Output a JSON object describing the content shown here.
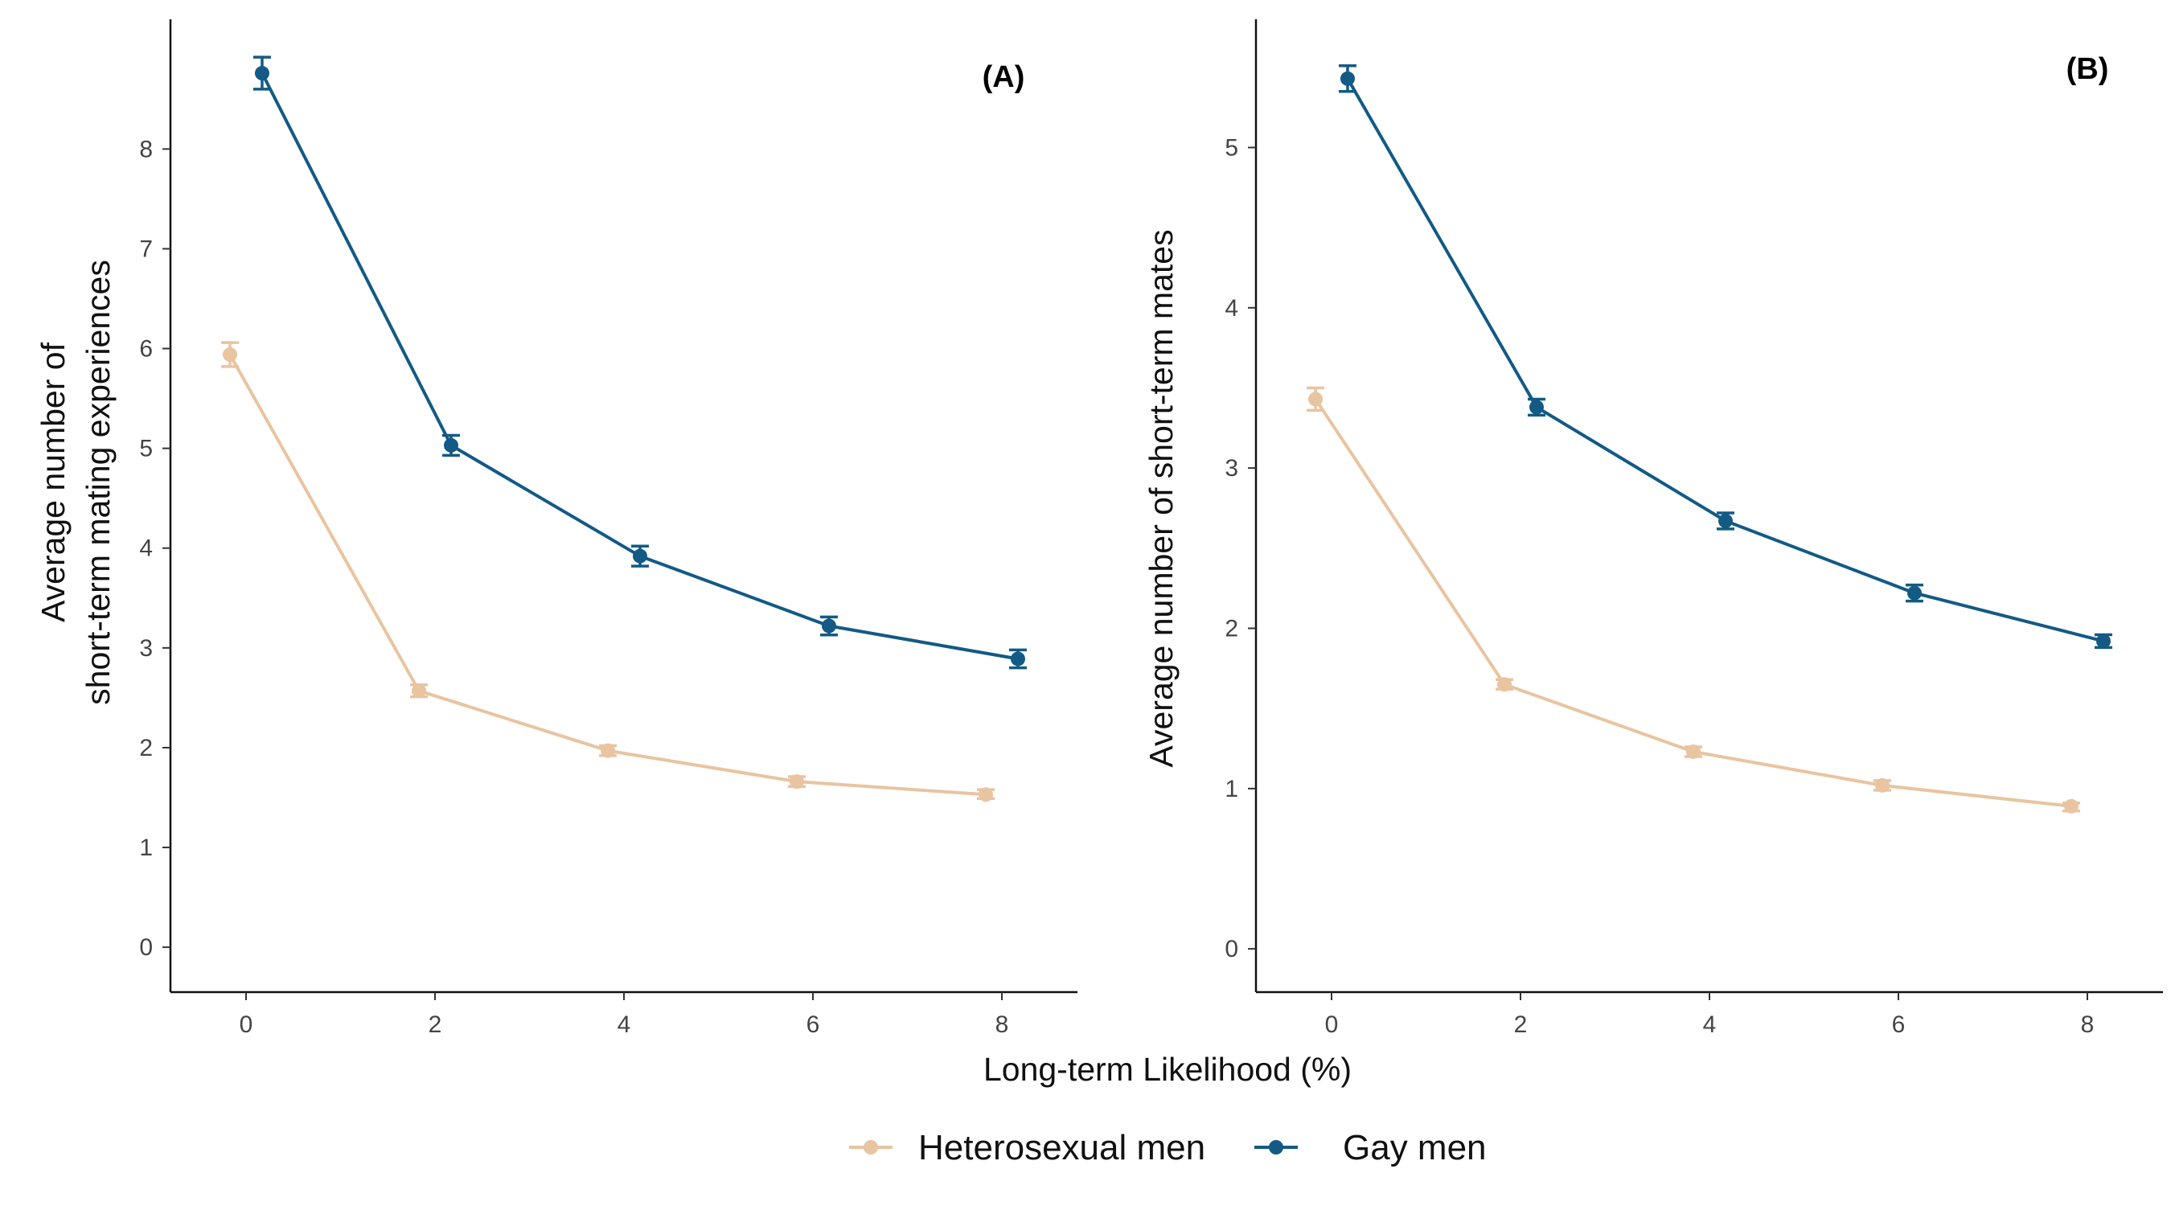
{
  "chart_data": [
    {
      "type": "line",
      "panel_label": "(A)",
      "ylabel_line1": "Average number of",
      "ylabel_line2": "short-term mating experiences",
      "xlim": [
        -0.8,
        8.8
      ],
      "ylim": [
        -0.45,
        9.3
      ],
      "xticks": [
        0,
        2,
        4,
        6,
        8
      ],
      "yticks": [
        0,
        1,
        2,
        3,
        4,
        5,
        6,
        7,
        8
      ],
      "series": [
        {
          "name": "Heterosexual men",
          "color": "#e8c4a0",
          "x": [
            -0.17,
            1.83,
            3.83,
            5.83,
            7.83
          ],
          "y": [
            5.94,
            2.57,
            1.97,
            1.66,
            1.53
          ],
          "ci_low": [
            5.82,
            2.51,
            1.92,
            1.61,
            1.49
          ],
          "ci_high": [
            6.06,
            2.63,
            2.02,
            1.71,
            1.58
          ]
        },
        {
          "name": "Gay men",
          "color": "#135a85",
          "x": [
            0.17,
            2.17,
            4.17,
            6.17,
            8.17
          ],
          "y": [
            8.76,
            5.03,
            3.92,
            3.22,
            2.89
          ],
          "ci_low": [
            8.6,
            4.93,
            3.82,
            3.13,
            2.8
          ],
          "ci_high": [
            8.92,
            5.13,
            4.02,
            3.31,
            2.98
          ]
        }
      ]
    },
    {
      "type": "line",
      "panel_label": "(B)",
      "ylabel": "Average number of short-term mates",
      "xlim": [
        -0.8,
        8.8
      ],
      "ylim": [
        -0.27,
        5.8
      ],
      "xticks": [
        0,
        2,
        4,
        6,
        8
      ],
      "yticks": [
        0,
        1,
        2,
        3,
        4,
        5
      ],
      "series": [
        {
          "name": "Heterosexual men",
          "color": "#e8c4a0",
          "x": [
            -0.17,
            1.83,
            3.83,
            5.83,
            7.83
          ],
          "y": [
            3.43,
            1.65,
            1.23,
            1.02,
            0.89
          ],
          "ci_low": [
            3.36,
            1.62,
            1.2,
            0.99,
            0.86
          ],
          "ci_high": [
            3.5,
            1.68,
            1.26,
            1.05,
            0.91
          ]
        },
        {
          "name": "Gay men",
          "color": "#135a85",
          "x": [
            0.17,
            2.17,
            4.17,
            6.17,
            8.17
          ],
          "y": [
            5.43,
            3.38,
            2.67,
            2.22,
            1.92
          ],
          "ci_low": [
            5.35,
            3.33,
            2.62,
            2.17,
            1.88
          ],
          "ci_high": [
            5.51,
            3.43,
            2.72,
            2.27,
            1.96
          ]
        }
      ]
    }
  ],
  "xlabel": "Long-term Likelihood (%)",
  "legend": {
    "position": "bottom",
    "items": [
      {
        "label": "Heterosexual men",
        "color": "#e8c4a0"
      },
      {
        "label": "Gay men",
        "color": "#135a85"
      }
    ]
  }
}
